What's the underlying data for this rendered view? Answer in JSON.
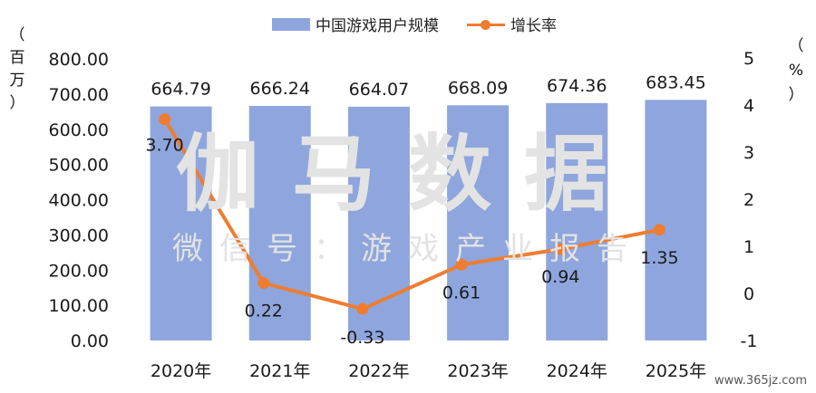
{
  "chart_data": {
    "type": "bar",
    "title": "",
    "categories": [
      "2020年",
      "2021年",
      "2022年",
      "2023年",
      "2024年",
      "2025年"
    ],
    "series": [
      {
        "name": "中国游戏用户规模",
        "type": "bar",
        "axis": "left",
        "values": [
          664.79,
          666.24,
          664.07,
          668.09,
          674.36,
          683.45
        ],
        "labels": [
          "664.79",
          "666.24",
          "664.07",
          "668.09",
          "674.36",
          "683.45"
        ],
        "color": "#8ea6dd"
      },
      {
        "name": "增长率",
        "type": "line",
        "axis": "right",
        "values": [
          3.7,
          0.22,
          -0.33,
          0.61,
          0.94,
          1.35
        ],
        "labels": [
          "3.70",
          "0.22",
          "-0.33",
          "0.61",
          "0.94",
          "1.35"
        ],
        "color": "#ee7d31"
      }
    ],
    "y_left": {
      "unit_chars": [
        "（",
        "百",
        "万",
        "）"
      ],
      "ylim": [
        0,
        800
      ],
      "ticks": [
        "0.00",
        "100.00",
        "200.00",
        "300.00",
        "400.00",
        "500.00",
        "600.00",
        "700.00",
        "800.00"
      ]
    },
    "y_right": {
      "unit_chars": [
        "（",
        "%",
        "）"
      ],
      "ylim": [
        -1,
        5
      ],
      "ticks": [
        "-1",
        "0",
        "1",
        "2",
        "3",
        "4",
        "5"
      ]
    },
    "legend": "top-center",
    "grid": false
  },
  "watermark": {
    "main": "伽马数据",
    "sub": "微信号：游戏产业报告"
  },
  "footer": "www.365jz.com"
}
